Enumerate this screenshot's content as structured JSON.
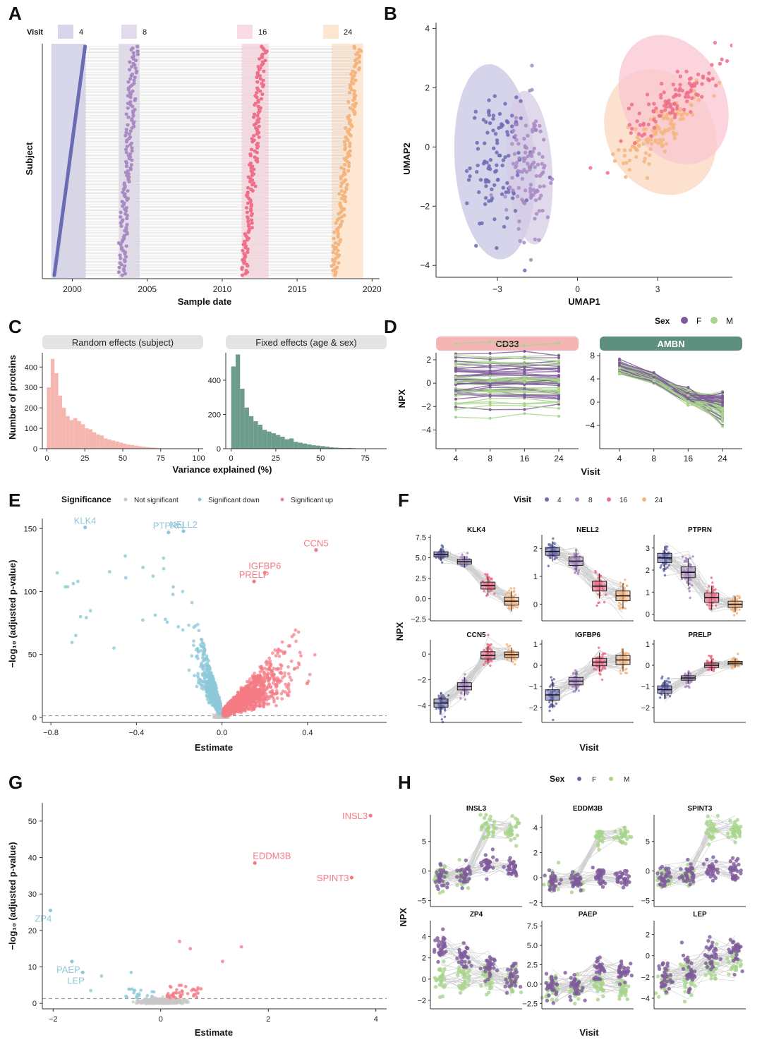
{
  "panel_letters": {
    "A": "A",
    "B": "B",
    "C": "C",
    "D": "D",
    "E": "E",
    "F": "F",
    "G": "G",
    "H": "H"
  },
  "colors": {
    "v4": "#6b6bb3",
    "v8": "#a98bc4",
    "v16": "#ef6f8a",
    "v24": "#f5b57e",
    "v4_bg": "#d8d6ea",
    "v8_bg": "#e3dcec",
    "v16_bg": "#fbdbe3",
    "v24_bg": "#fde6d2",
    "female": "#7e5a9b",
    "male": "#a8d48c",
    "not_sig": "#c8c8c8",
    "sig_down": "#8ec8d8",
    "sig_up": "#f47b84",
    "ranef_fill": "#f4b6ae",
    "fixef_fill": "#6e9c8c",
    "strip_gray": "#e4e4e4",
    "strip_cd33": "#f5b5b5",
    "strip_ambn": "#5f8f7f",
    "grid": "#bbbbbb",
    "axis": "#333333",
    "text": "#111111"
  },
  "chart_data": [
    {
      "id": "A",
      "type": "scatter",
      "legend_title": "Visit",
      "legend_labels": [
        "4",
        "8",
        "16",
        "24"
      ],
      "xlabel": "Sample date",
      "ylabel": "Subject",
      "xlim": [
        1998,
        2020.5
      ],
      "xticks": [
        2000,
        2005,
        2010,
        2015,
        2020
      ],
      "visit_windows": [
        {
          "visit": "4",
          "start": 1998.6,
          "end": 2000.9
        },
        {
          "visit": "8",
          "start": 2003.1,
          "end": 2004.5
        },
        {
          "visit": "16",
          "start": 2011.3,
          "end": 2013.1
        },
        {
          "visit": "24",
          "start": 2017.3,
          "end": 2019.4
        }
      ],
      "n_subjects": 150
    },
    {
      "id": "B",
      "type": "scatter",
      "xlabel": "UMAP1",
      "ylabel": "UMAP2",
      "xlim": [
        -5.3,
        5.8
      ],
      "ylim": [
        -4.4,
        4.2
      ],
      "xticks": [
        -3,
        0,
        3
      ],
      "yticks": [
        -4,
        -2,
        0,
        2,
        4
      ],
      "groups": [
        {
          "visit": "4",
          "center": [
            -3.1,
            -0.5
          ],
          "rx": 1.5,
          "ry": 3.3,
          "angle": 0
        },
        {
          "visit": "8",
          "center": [
            -1.8,
            -0.7
          ],
          "rx": 0.85,
          "ry": 2.6,
          "angle": 0
        },
        {
          "visit": "16",
          "center": [
            3.6,
            1.6
          ],
          "rx": 1.9,
          "ry": 2.3,
          "angle": 0
        },
        {
          "visit": "24",
          "center": [
            3.1,
            0.5
          ],
          "rx": 2.0,
          "ry": 2.2,
          "angle": 0
        }
      ]
    },
    {
      "id": "C1",
      "type": "bar",
      "title": "Random effects (subject)",
      "xlabel": "Variance explained (%)",
      "ylabel": "Number of proteins",
      "bin_width": 2.5,
      "bin_start": 0,
      "values": [
        300,
        440,
        370,
        260,
        200,
        160,
        140,
        150,
        135,
        120,
        100,
        95,
        80,
        70,
        65,
        50,
        45,
        40,
        35,
        30,
        25,
        20,
        18,
        15,
        12,
        10,
        8,
        6,
        5,
        3,
        2,
        1,
        1,
        1,
        0,
        0,
        0,
        0,
        0,
        0
      ],
      "xlim": [
        -3,
        103
      ],
      "ylim": [
        0,
        470
      ],
      "xticks": [
        0,
        25,
        50,
        75,
        100
      ],
      "yticks": [
        0,
        100,
        200,
        300,
        400
      ]
    },
    {
      "id": "C2",
      "type": "bar",
      "title": "Fixed effects (age & sex)",
      "bin_width": 2.5,
      "bin_start": 0,
      "values": [
        480,
        550,
        350,
        240,
        190,
        160,
        140,
        110,
        100,
        90,
        80,
        70,
        55,
        60,
        40,
        35,
        30,
        25,
        20,
        18,
        15,
        12,
        8,
        6,
        5,
        4,
        5,
        3,
        2,
        1,
        1,
        1,
        0,
        0
      ],
      "xlim": [
        -3,
        87
      ],
      "ylim": [
        0,
        560
      ],
      "xticks": [
        0,
        25,
        50,
        75
      ],
      "yticks": [
        0,
        200,
        400
      ]
    },
    {
      "id": "D1",
      "type": "line",
      "title": "CD33",
      "ylabel": "NPX",
      "xlabel": "Visit",
      "categories": [
        "4",
        "8",
        "16",
        "24"
      ],
      "ylim": [
        -5.6,
        2.6
      ],
      "yticks": [
        -4,
        -2,
        0,
        2
      ]
    },
    {
      "id": "D2",
      "type": "line",
      "title": "AMBN",
      "categories": [
        "4",
        "8",
        "16",
        "24"
      ],
      "ylim": [
        -8,
        8.5
      ],
      "yticks": [
        -4,
        0,
        4,
        8
      ]
    },
    {
      "id": "D_legend",
      "type": "legend",
      "title": "Sex",
      "labels": [
        "F",
        "M"
      ]
    },
    {
      "id": "E",
      "type": "scatter",
      "legend_title": "Significance",
      "legend_labels": [
        "Not significant",
        "Significant down",
        "Significant up"
      ],
      "xlabel": "Estimate",
      "ylabel": "−log₁₀ (adjusted p-value)",
      "xlim": [
        -0.84,
        0.77
      ],
      "ylim": [
        -4,
        158
      ],
      "xticks": [
        -0.8,
        -0.4,
        0.0,
        0.4
      ],
      "yticks": [
        0,
        50,
        100,
        150
      ],
      "threshold": 1.3,
      "labeled_points": [
        {
          "label": "KLK4",
          "x": -0.64,
          "y": 151,
          "group": "down"
        },
        {
          "label": "PTPRN",
          "x": -0.25,
          "y": 147,
          "group": "down"
        },
        {
          "label": "NELL2",
          "x": -0.18,
          "y": 148,
          "group": "down"
        },
        {
          "label": "PRELP",
          "x": 0.15,
          "y": 108,
          "group": "up"
        },
        {
          "label": "IGFBP6",
          "x": 0.2,
          "y": 115,
          "group": "up"
        },
        {
          "label": "CCN5",
          "x": 0.44,
          "y": 133,
          "group": "up"
        }
      ]
    },
    {
      "id": "F",
      "type": "scatter",
      "legend_title": "Visit",
      "legend_labels": [
        "4",
        "8",
        "16",
        "24"
      ],
      "xlabel": "Visit",
      "ylabel": "NPX",
      "facets": [
        {
          "title": "KLK4",
          "medians": [
            5.4,
            4.5,
            1.6,
            -0.3
          ],
          "iqr": [
            0.45,
            0.4,
            0.6,
            0.7
          ],
          "ylim": [
            -2.7,
            7.8
          ],
          "yticks": [
            -2.5,
            0.0,
            2.5,
            5.0,
            7.5
          ],
          "ytick_labels": [
            "−2.5",
            "0.0",
            "2.5",
            "5.0",
            "7.5"
          ]
        },
        {
          "title": "NELL2",
          "medians": [
            1.9,
            1.55,
            0.65,
            0.3
          ],
          "iqr": [
            0.2,
            0.22,
            0.25,
            0.25
          ],
          "ylim": [
            -0.6,
            2.5
          ],
          "yticks": [
            0,
            1,
            2
          ],
          "ytick_labels": [
            "0",
            "1",
            "2"
          ]
        },
        {
          "title": "PTPRN",
          "medians": [
            2.55,
            1.9,
            0.75,
            0.45
          ],
          "iqr": [
            0.3,
            0.35,
            0.3,
            0.2
          ],
          "ylim": [
            -0.3,
            3.6
          ],
          "yticks": [
            0,
            1,
            2,
            3
          ],
          "ytick_labels": [
            "0",
            "1",
            "2",
            "3"
          ]
        },
        {
          "title": "CCN5",
          "medians": [
            -3.8,
            -2.5,
            -0.1,
            -0.05
          ],
          "iqr": [
            0.45,
            0.4,
            0.4,
            0.3
          ],
          "ylim": [
            -5.3,
            1.1
          ],
          "yticks": [
            -4,
            -2,
            0
          ],
          "ytick_labels": [
            "−4",
            "−2",
            "0"
          ]
        },
        {
          "title": "IGFBP6",
          "medians": [
            -1.4,
            -0.75,
            0.15,
            0.25
          ],
          "iqr": [
            0.35,
            0.25,
            0.25,
            0.3
          ],
          "ylim": [
            -2.7,
            1.2
          ],
          "yticks": [
            -2,
            -1,
            0,
            1
          ],
          "ytick_labels": [
            "−2",
            "−1",
            "0",
            "1"
          ]
        },
        {
          "title": "PRELP",
          "medians": [
            -1.15,
            -0.6,
            0.0,
            0.1
          ],
          "iqr": [
            0.25,
            0.15,
            0.15,
            0.12
          ],
          "ylim": [
            -2.7,
            1.2
          ],
          "yticks": [
            -2,
            -1,
            0,
            1
          ],
          "ytick_labels": [
            "−2",
            "−1",
            "0",
            "1"
          ]
        }
      ]
    },
    {
      "id": "G",
      "type": "scatter",
      "xlabel": "Estimate",
      "ylabel": "−log₁₀ (adjusted p-value)",
      "xlim": [
        -2.2,
        4.2
      ],
      "ylim": [
        -1.5,
        55
      ],
      "xticks": [
        -2,
        0,
        2,
        4
      ],
      "yticks": [
        0,
        10,
        20,
        30,
        40,
        50
      ],
      "threshold": 1.3,
      "labeled_points": [
        {
          "label": "INSL3",
          "x": 3.9,
          "y": 51.5,
          "group": "up"
        },
        {
          "label": "EDDM3B",
          "x": 1.75,
          "y": 38.5,
          "group": "up"
        },
        {
          "label": "SPINT3",
          "x": 3.55,
          "y": 34.5,
          "group": "up"
        },
        {
          "label": "ZP4",
          "x": -2.05,
          "y": 25.5,
          "group": "down"
        },
        {
          "label": "PAEP",
          "x": -1.65,
          "y": 11.5,
          "group": "down"
        },
        {
          "label": "LEP",
          "x": -1.45,
          "y": 8.5,
          "group": "down"
        }
      ]
    },
    {
      "id": "H",
      "type": "scatter",
      "legend_title": "Sex",
      "legend_labels": [
        "F",
        "M"
      ],
      "xlabel": "Visit",
      "ylabel": "NPX",
      "facets": [
        {
          "title": "INSL3",
          "f_means": [
            -1.0,
            -0.5,
            1.0,
            0.5
          ],
          "m_means": [
            -1.0,
            -1.0,
            7.0,
            7.0
          ],
          "spread": 1.4,
          "ylim": [
            -6,
            9.5
          ],
          "yticks": [
            -5,
            0,
            5
          ],
          "ytick_labels": [
            "−5",
            "0",
            "5"
          ]
        },
        {
          "title": "EDDM3B",
          "f_means": [
            -0.3,
            -0.2,
            0.0,
            -0.1
          ],
          "m_means": [
            -0.3,
            -0.2,
            3.2,
            3.3
          ],
          "spread": 0.5,
          "ylim": [
            -2.3,
            5.0
          ],
          "yticks": [
            -2,
            0,
            2,
            4
          ],
          "ytick_labels": [
            "−2",
            "0",
            "2",
            "4"
          ]
        },
        {
          "title": "SPINT3",
          "f_means": [
            -1.0,
            -0.5,
            0.5,
            0.0
          ],
          "m_means": [
            -1.2,
            -0.8,
            7.0,
            7.0
          ],
          "spread": 1.4,
          "ylim": [
            -6,
            9.5
          ],
          "yticks": [
            -5,
            0,
            5
          ],
          "ytick_labels": [
            "−5",
            "0",
            "5"
          ]
        },
        {
          "title": "ZP4",
          "f_means": [
            3.0,
            2.0,
            1.0,
            0.0
          ],
          "m_means": [
            0.0,
            0.0,
            0.0,
            -0.3
          ],
          "spread": 1.0,
          "ylim": [
            -2.8,
            5.5
          ],
          "yticks": [
            -2,
            0,
            2,
            4
          ],
          "ytick_labels": [
            "−2",
            "0",
            "2",
            "4"
          ]
        },
        {
          "title": "PAEP",
          "f_means": [
            -0.3,
            -0.3,
            2.0,
            1.8
          ],
          "m_means": [
            -0.5,
            -0.5,
            0.0,
            -0.5
          ],
          "spread": 1.2,
          "ylim": [
            -3.2,
            8.2
          ],
          "yticks": [
            -2.5,
            0.0,
            2.5,
            5.0,
            7.5
          ],
          "ytick_labels": [
            "−2.5",
            "0.0",
            "2.5",
            "5.0",
            "7.5"
          ]
        },
        {
          "title": "LEP",
          "f_means": [
            -2.0,
            -1.5,
            0.0,
            0.5
          ],
          "m_means": [
            -2.5,
            -2.0,
            -1.0,
            -0.5
          ],
          "spread": 1.1,
          "ylim": [
            -5,
            3.3
          ],
          "yticks": [
            -4,
            -2,
            0,
            2
          ],
          "ytick_labels": [
            "−4",
            "−2",
            "0",
            "2"
          ]
        }
      ]
    }
  ]
}
